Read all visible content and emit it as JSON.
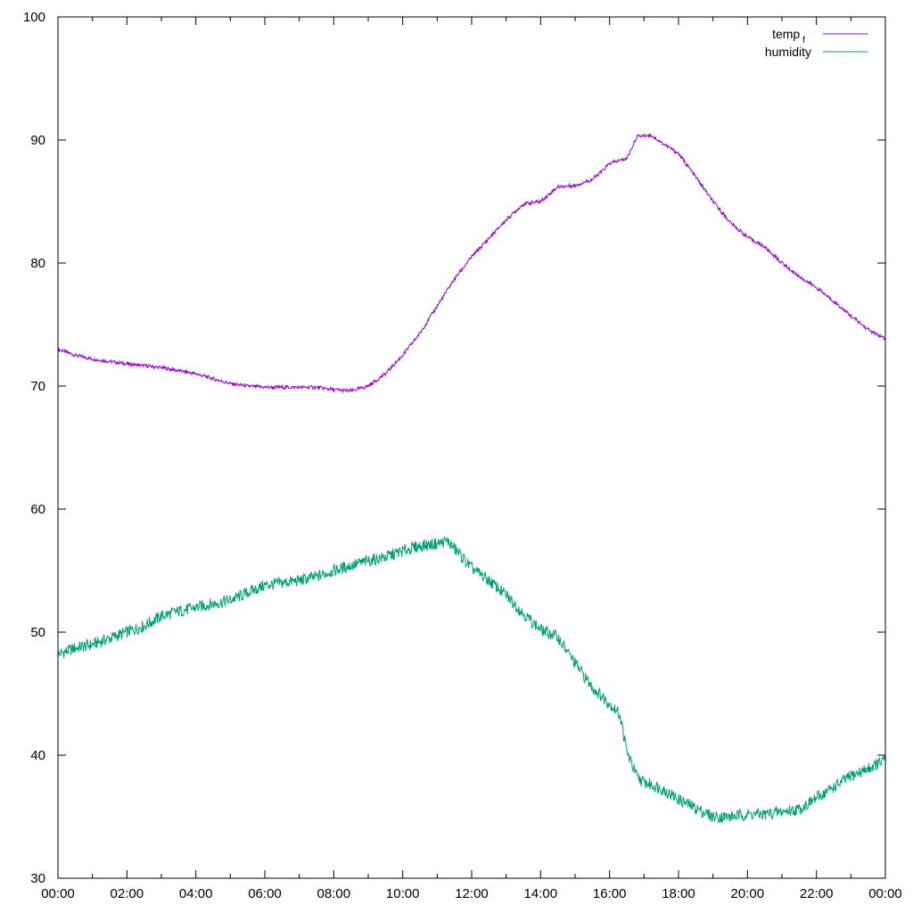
{
  "chart_data": {
    "type": "line",
    "title": "",
    "xlabel": "",
    "ylabel": "",
    "xlim": [
      0,
      24
    ],
    "ylim": [
      30,
      100
    ],
    "grid": false,
    "legend_position": "top-right",
    "x_ticks": [
      {
        "value": 0,
        "label": "00:00"
      },
      {
        "value": 2,
        "label": "02:00"
      },
      {
        "value": 4,
        "label": "04:00"
      },
      {
        "value": 6,
        "label": "06:00"
      },
      {
        "value": 8,
        "label": "08:00"
      },
      {
        "value": 10,
        "label": "10:00"
      },
      {
        "value": 12,
        "label": "12:00"
      },
      {
        "value": 14,
        "label": "14:00"
      },
      {
        "value": 16,
        "label": "16:00"
      },
      {
        "value": 18,
        "label": "18:00"
      },
      {
        "value": 20,
        "label": "20:00"
      },
      {
        "value": 22,
        "label": "22:00"
      },
      {
        "value": 24,
        "label": "00:00"
      }
    ],
    "y_ticks": [
      {
        "value": 30,
        "label": "30"
      },
      {
        "value": 40,
        "label": "40"
      },
      {
        "value": 50,
        "label": "50"
      },
      {
        "value": 60,
        "label": "60"
      },
      {
        "value": 70,
        "label": "70"
      },
      {
        "value": 80,
        "label": "80"
      },
      {
        "value": 90,
        "label": "90"
      },
      {
        "value": 100,
        "label": "100"
      }
    ],
    "series": [
      {
        "name": "temp",
        "name_subscript": "f",
        "color": "#9400d3",
        "points": [
          [
            0,
            73.0
          ],
          [
            0.5,
            72.5
          ],
          [
            1,
            72.2
          ],
          [
            2,
            71.8
          ],
          [
            3,
            71.5
          ],
          [
            4,
            71.0
          ],
          [
            4.5,
            70.6
          ],
          [
            5,
            70.2
          ],
          [
            5.5,
            70.0
          ],
          [
            6,
            69.9
          ],
          [
            7,
            69.9
          ],
          [
            7.5,
            69.9
          ],
          [
            8,
            69.7
          ],
          [
            8.5,
            69.6
          ],
          [
            9,
            70.0
          ],
          [
            9.5,
            71.0
          ],
          [
            10,
            72.5
          ],
          [
            10.5,
            74.3
          ],
          [
            11,
            76.5
          ],
          [
            11.5,
            78.7
          ],
          [
            12,
            80.5
          ],
          [
            12.5,
            82.0
          ],
          [
            13,
            83.5
          ],
          [
            13.5,
            84.8
          ],
          [
            14,
            85.0
          ],
          [
            14.5,
            86.2
          ],
          [
            15,
            86.3
          ],
          [
            15.5,
            86.8
          ],
          [
            15.8,
            87.5
          ],
          [
            16,
            88.1
          ],
          [
            16.5,
            88.5
          ],
          [
            16.8,
            90.3
          ],
          [
            17.2,
            90.4
          ],
          [
            17.5,
            89.8
          ],
          [
            18,
            88.9
          ],
          [
            18.5,
            87.0
          ],
          [
            19,
            85.0
          ],
          [
            19.5,
            83.3
          ],
          [
            20,
            82.1
          ],
          [
            20.5,
            81.3
          ],
          [
            21,
            80.0
          ],
          [
            21.5,
            78.9
          ],
          [
            22,
            78.0
          ],
          [
            22.5,
            76.9
          ],
          [
            23,
            75.7
          ],
          [
            23.5,
            74.6
          ],
          [
            24,
            73.8
          ]
        ]
      },
      {
        "name": "humidity",
        "color": "#009e73",
        "points": [
          [
            0,
            48.2
          ],
          [
            0.5,
            48.7
          ],
          [
            1,
            49.0
          ],
          [
            1.5,
            49.5
          ],
          [
            2,
            50.0
          ],
          [
            2.5,
            50.5
          ],
          [
            3,
            51.3
          ],
          [
            3.5,
            51.7
          ],
          [
            4,
            52.0
          ],
          [
            4.5,
            52.3
          ],
          [
            5,
            52.6
          ],
          [
            5.5,
            53.2
          ],
          [
            6,
            53.8
          ],
          [
            6.5,
            54.0
          ],
          [
            7,
            54.2
          ],
          [
            7.5,
            54.5
          ],
          [
            8,
            55.0
          ],
          [
            8.5,
            55.4
          ],
          [
            9,
            55.8
          ],
          [
            9.5,
            56.1
          ],
          [
            10,
            56.6
          ],
          [
            10.5,
            57.0
          ],
          [
            11,
            57.2
          ],
          [
            11.3,
            57.4
          ],
          [
            11.6,
            56.5
          ],
          [
            12,
            55.2
          ],
          [
            12.5,
            54.2
          ],
          [
            13,
            53.0
          ],
          [
            13.5,
            51.5
          ],
          [
            14,
            50.2
          ],
          [
            14.5,
            49.6
          ],
          [
            14.8,
            48.3
          ],
          [
            15,
            47.5
          ],
          [
            15.5,
            45.5
          ],
          [
            16,
            44.2
          ],
          [
            16.3,
            43.3
          ],
          [
            16.5,
            40.3
          ],
          [
            16.8,
            38.2
          ],
          [
            17,
            37.8
          ],
          [
            17.5,
            37.3
          ],
          [
            18,
            36.4
          ],
          [
            18.5,
            35.7
          ],
          [
            19,
            35.0
          ],
          [
            19.5,
            35.0
          ],
          [
            20,
            35.2
          ],
          [
            20.5,
            35.2
          ],
          [
            21,
            35.4
          ],
          [
            21.5,
            35.6
          ],
          [
            22,
            36.5
          ],
          [
            22.5,
            37.4
          ],
          [
            23,
            38.3
          ],
          [
            23.5,
            38.9
          ],
          [
            24,
            39.6
          ]
        ]
      }
    ]
  }
}
